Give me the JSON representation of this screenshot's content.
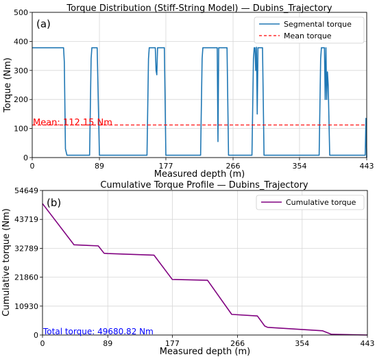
{
  "chart_data": [
    {
      "type": "line",
      "panel_label": "(a)",
      "title": "Torque Distribution (Stiff-String Model) — Dubins_Trajectory",
      "xlabel": "Measured depth (m)",
      "ylabel": "Torque (Nm)",
      "xlim": [
        0,
        443
      ],
      "ylim": [
        0,
        500
      ],
      "xticks": [
        0,
        89,
        177,
        266,
        354,
        443
      ],
      "yticks": [
        0,
        100,
        200,
        300,
        400,
        500
      ],
      "xtick_labels": [
        "0",
        "89",
        "177",
        "266",
        "354",
        "443"
      ],
      "ytick_labels": [
        "0",
        "100",
        "200",
        "300",
        "400",
        "500"
      ],
      "grid": true,
      "legend_position": "top-right",
      "series": [
        {
          "name": "Segmental torque",
          "color": "#1f77b4",
          "style": "solid",
          "x": [
            0,
            41.5,
            42.5,
            44,
            46,
            76,
            78,
            79,
            86,
            89,
            152,
            154,
            155,
            163,
            164,
            165,
            166,
            167,
            169,
            170,
            175,
            177,
            223,
            225,
            226,
            245,
            246,
            247,
            248,
            249,
            258,
            260,
            291,
            293,
            294,
            295,
            296,
            297,
            298,
            299,
            302,
            303,
            305,
            307,
            380,
            382,
            383,
            387,
            388,
            389,
            390,
            391,
            392,
            394,
            441,
            442,
            443
          ],
          "y": [
            378,
            378,
            330,
            30,
            8,
            8,
            340,
            378,
            378,
            8,
            8,
            340,
            378,
            378,
            300,
            285,
            378,
            378,
            378,
            378,
            378,
            8,
            8,
            340,
            378,
            378,
            55,
            378,
            378,
            378,
            378,
            8,
            8,
            340,
            378,
            378,
            300,
            380,
            150,
            378,
            378,
            378,
            378,
            8,
            8,
            340,
            378,
            378,
            200,
            378,
            200,
            295,
            250,
            8,
            8,
            135,
            0
          ]
        },
        {
          "name": "Mean torque",
          "color": "#ff0000",
          "style": "dashed",
          "x": [
            0,
            443
          ],
          "y": [
            112.15,
            112.15
          ]
        }
      ],
      "annotations": [
        {
          "text": "Mean: 112.15 Nm",
          "x": 0,
          "y": 112.15,
          "color": "#ff0000"
        }
      ]
    },
    {
      "type": "line",
      "panel_label": "(b)",
      "title": "Cumulative Torque Profile — Dubins_Trajectory",
      "xlabel": "Measured depth (m)",
      "ylabel": "Cumulative torque (Nm)",
      "xlim": [
        0,
        443
      ],
      "ylim": [
        0,
        54649
      ],
      "xticks": [
        0,
        89,
        177,
        266,
        354,
        443
      ],
      "yticks": [
        0,
        10930,
        21860,
        32789,
        43719,
        54649
      ],
      "xtick_labels": [
        "0",
        "89",
        "177",
        "266",
        "354",
        "443"
      ],
      "ytick_labels": [
        "0",
        "10930",
        "21860",
        "32789",
        "43719",
        "54649"
      ],
      "grid": true,
      "legend_position": "top-right",
      "series": [
        {
          "name": "Cumulative torque",
          "color": "#800080",
          "style": "solid",
          "x": [
            0,
            43,
            76,
            84,
            89,
            152,
            177,
            225,
            258,
            293,
            303,
            307,
            382,
            394,
            443
          ],
          "y": [
            49680.82,
            34100,
            33700,
            30900,
            30800,
            30200,
            21000,
            20700,
            7800,
            7200,
            3400,
            2900,
            1600,
            270,
            0
          ]
        }
      ],
      "annotations": [
        {
          "text": "Total torque: 49680.82 Nm",
          "x": 0,
          "y": 0,
          "color": "#0000ff"
        }
      ]
    }
  ]
}
